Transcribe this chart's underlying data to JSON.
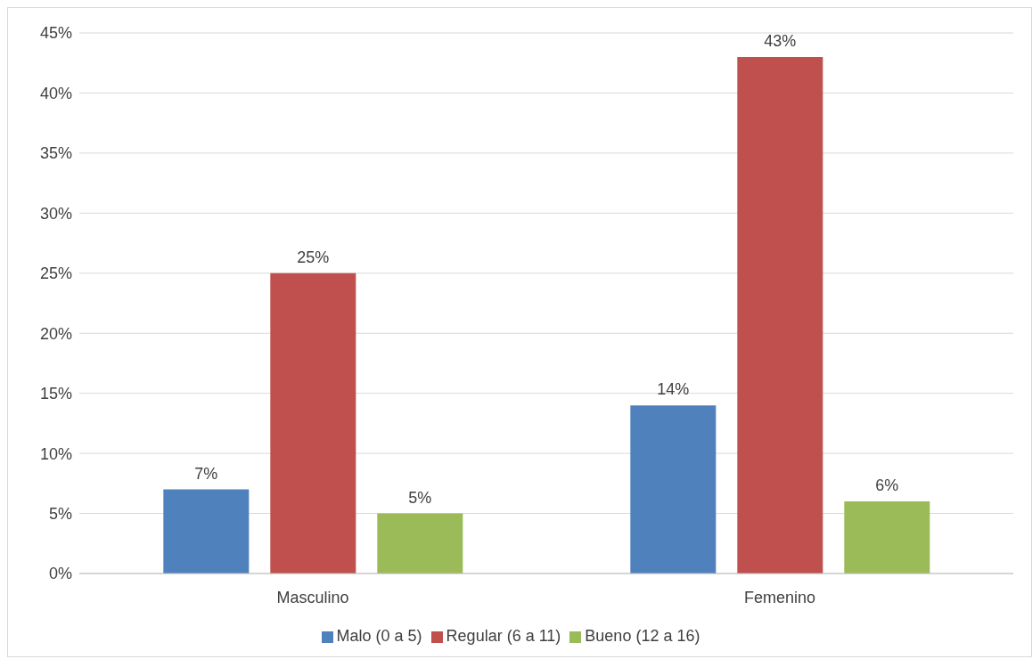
{
  "chart_data": {
    "type": "bar",
    "categories": [
      "Masculino",
      "Femenino"
    ],
    "series": [
      {
        "name": "Malo (0 a 5)",
        "color": "#4f81bd",
        "values": [
          7,
          14
        ],
        "value_labels": [
          "7%",
          "14%"
        ]
      },
      {
        "name": "Regular (6 a 11)",
        "color": "#c0504d",
        "values": [
          25,
          43
        ],
        "value_labels": [
          "25%",
          "43%"
        ]
      },
      {
        "name": "Bueno (12 a 16)",
        "color": "#9bbb59",
        "values": [
          5,
          6
        ],
        "value_labels": [
          "5%",
          "6%"
        ]
      }
    ],
    "ylim": [
      0,
      45
    ],
    "yticks": [
      {
        "value": 0,
        "label": "0%"
      },
      {
        "value": 5,
        "label": "5%"
      },
      {
        "value": 10,
        "label": "10%"
      },
      {
        "value": 15,
        "label": "15%"
      },
      {
        "value": 20,
        "label": "20%"
      },
      {
        "value": 25,
        "label": "25%"
      },
      {
        "value": 30,
        "label": "30%"
      },
      {
        "value": 35,
        "label": "35%"
      },
      {
        "value": 40,
        "label": "40%"
      },
      {
        "value": 45,
        "label": "45%"
      }
    ],
    "grid": "y",
    "legend": "bottom"
  }
}
